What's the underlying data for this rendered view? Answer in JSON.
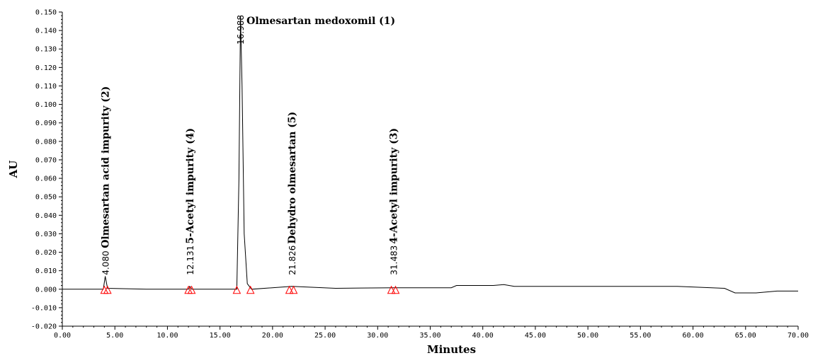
{
  "chart_data": {
    "type": "line",
    "xlabel": "Minutes",
    "ylabel": "AU",
    "xlim": [
      0,
      70
    ],
    "ylim": [
      -0.02,
      0.15
    ],
    "x_ticks": [
      "0.00",
      "5.00",
      "10.00",
      "15.00",
      "20.00",
      "25.00",
      "30.00",
      "35.00",
      "40.00",
      "45.00",
      "50.00",
      "55.00",
      "60.00",
      "65.00",
      "70.00"
    ],
    "y_ticks": [
      "-0.020",
      "-0.010",
      "0.000",
      "0.010",
      "0.020",
      "0.030",
      "0.040",
      "0.050",
      "0.060",
      "0.070",
      "0.080",
      "0.090",
      "0.100",
      "0.110",
      "0.120",
      "0.130",
      "0.140",
      "0.150"
    ],
    "trace": {
      "x": [
        0,
        3.9,
        4.08,
        4.3,
        8,
        12.0,
        12.13,
        12.3,
        16.6,
        16.8,
        16.95,
        17.1,
        17.3,
        17.6,
        18,
        21.83,
        26,
        31.48,
        37,
        37.5,
        41,
        42,
        43,
        50,
        55,
        58.5,
        63,
        64,
        66,
        68,
        70
      ],
      "y": [
        0,
        0,
        0.007,
        0.0005,
        0,
        0,
        0.0015,
        0,
        0,
        0.06,
        0.148,
        0.11,
        0.03,
        0.003,
        0,
        0.0015,
        0.0005,
        0.0008,
        0.0008,
        0.002,
        0.002,
        0.0025,
        0.0015,
        0.0015,
        0.0015,
        0.0015,
        0.0005,
        -0.002,
        -0.002,
        -0.001,
        -0.001
      ]
    },
    "peaks": [
      {
        "rt": 4.08,
        "rt_label": "4.080",
        "name": "Olmesartan acid impurity (2)"
      },
      {
        "rt": 12.131,
        "rt_label": "12.131",
        "name": "5-Acetyl impurity (4)"
      },
      {
        "rt": 16.988,
        "rt_label": "16.988",
        "name": "Olmesartan medoxomil (1)"
      },
      {
        "rt": 21.826,
        "rt_label": "21.826",
        "name": "Dehydro olmesartan (5)"
      },
      {
        "rt": 31.483,
        "rt_label": "31.483",
        "name": "4-Acetyl impurity (3)"
      }
    ],
    "integration_markers_x": [
      4.0,
      4.3,
      12.0,
      12.3,
      16.6,
      17.9,
      21.6,
      22.0,
      31.3,
      31.7
    ],
    "colors": {
      "trace": "#000000",
      "markers": "#ff0000",
      "axis": "#000000"
    }
  }
}
